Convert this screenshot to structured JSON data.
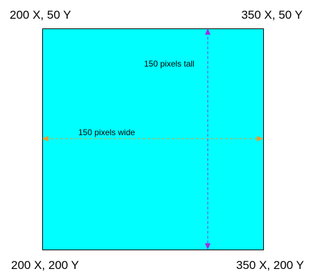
{
  "corners": {
    "top_left": "200 X, 50 Y",
    "top_right": "350 X, 50 Y",
    "bottom_left": "200 X, 200 Y",
    "bottom_right": "350 X, 200 Y"
  },
  "dimensions": {
    "height_label": "150 pixels tall",
    "width_label": "150 pixels wide"
  },
  "colors": {
    "square_fill": "#00FFFF",
    "square_border": "#000000",
    "vertical_arrow": "#A12BE6",
    "horizontal_arrow": "#E89B2E"
  }
}
